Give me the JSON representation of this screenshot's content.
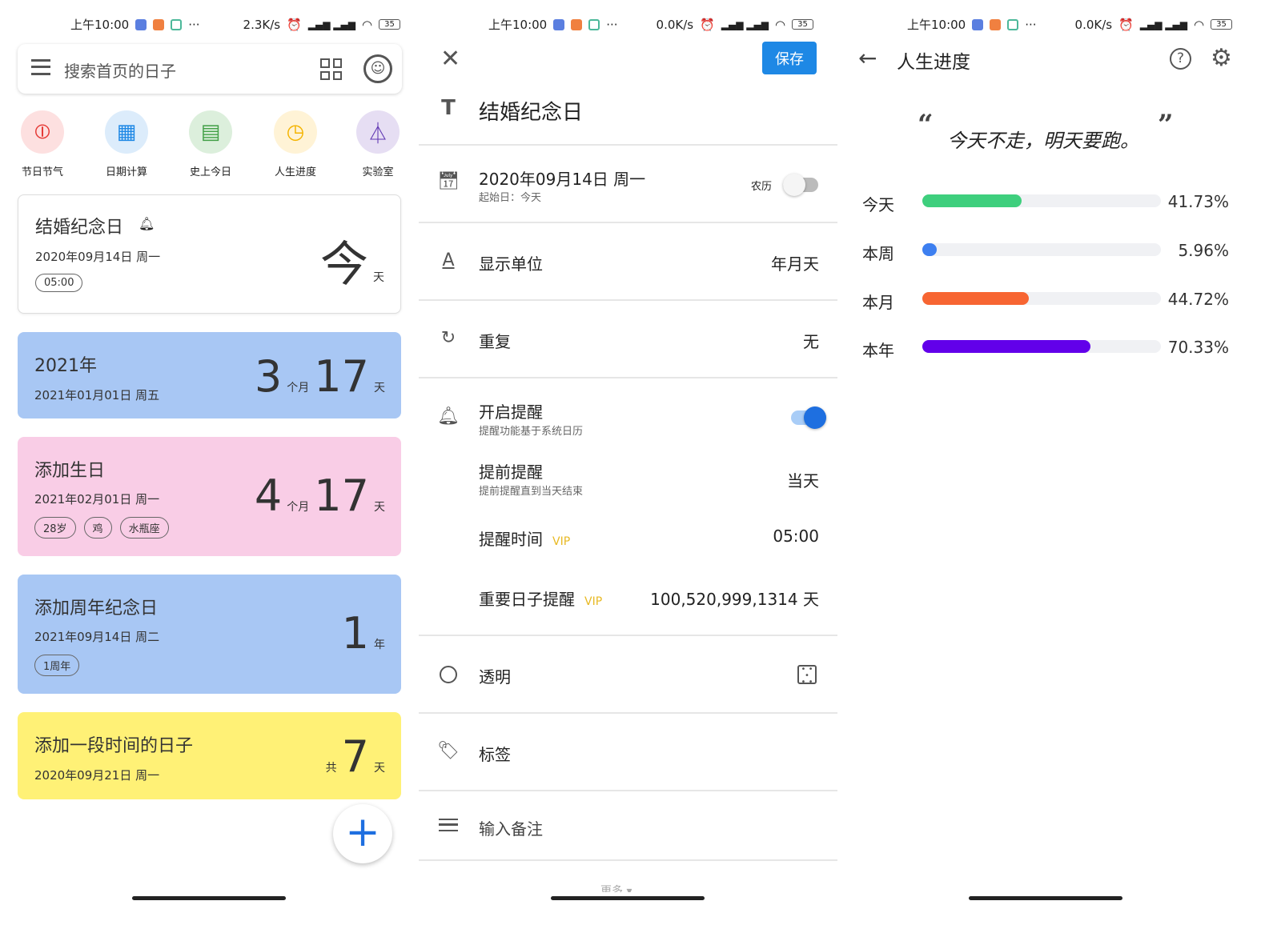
{
  "status_bars": [
    {
      "time": "上午10:00",
      "net": "2.3K/s",
      "battery": "35"
    },
    {
      "time": "上午10:00",
      "net": "0.0K/s",
      "battery": "35"
    },
    {
      "time": "上午10:00",
      "net": "0.0K/s",
      "battery": "35"
    }
  ],
  "home": {
    "search_placeholder": "搜索首页的日子",
    "shortcuts": [
      {
        "label": "节日节气",
        "icon": "lantern-icon",
        "bg": "#fde0e0",
        "color": "#e53935"
      },
      {
        "label": "日期计算",
        "icon": "calculator-icon",
        "bg": "#dcecfb",
        "color": "#1e88e5"
      },
      {
        "label": "史上今日",
        "icon": "document-icon",
        "bg": "#dcefdc",
        "color": "#43a047"
      },
      {
        "label": "人生进度",
        "icon": "clock-icon",
        "bg": "#fff3d6",
        "color": "#f4b400"
      },
      {
        "label": "实验室",
        "icon": "flask-icon",
        "bg": "#e6def3",
        "color": "#5e35b1"
      }
    ],
    "cards": [
      {
        "title": "结婚纪念日",
        "date": "2020年09月14日 周一",
        "chips": [
          "05:00"
        ],
        "big": "今",
        "unit": "天"
      },
      {
        "title": "2021年",
        "date": "2021年01月01日 周五",
        "n1": "3",
        "u1": "个月",
        "n2": "17",
        "u2": "天",
        "bg": "#a8c7f4"
      },
      {
        "title": "添加生日",
        "date": "2021年02月01日 周一",
        "chips": [
          "28岁",
          "鸡",
          "水瓶座"
        ],
        "n1": "4",
        "u1": "个月",
        "n2": "17",
        "u2": "天",
        "bg": "#f9cde6"
      },
      {
        "title": "添加周年纪念日",
        "date": "2021年09月14日 周二",
        "chips": [
          "1周年"
        ],
        "n1": "1",
        "u1": "年",
        "bg": "#a8c7f4"
      },
      {
        "title": "添加一段时间的日子",
        "date": "2020年09月21日 周一",
        "pre": "共",
        "n1": "7",
        "u1": "天",
        "bg": "#fff176"
      }
    ],
    "fab": "+"
  },
  "editor": {
    "save": "保存",
    "title": "结婚纪念日",
    "date": "2020年09月14日 周一",
    "date_sub": "起始日：今天",
    "lunar": "农历",
    "lunar_on": false,
    "unit_label": "显示单位",
    "unit_value": "年月天",
    "repeat_label": "重复",
    "repeat_value": "无",
    "remind_label": "开启提醒",
    "remind_sub": "提醒功能基于系统日历",
    "remind_on": true,
    "advance_label": "提前提醒",
    "advance_sub": "提前提醒直到当天结束",
    "advance_value": "当天",
    "time_label": "提醒时间",
    "vip": "VIP",
    "time_value": "05:00",
    "important_label": "重要日子提醒",
    "important_value": "100,520,999,1314 天",
    "transparent_label": "透明",
    "tag_label": "标签",
    "note_placeholder": "输入备注",
    "more": "更多"
  },
  "progress": {
    "title": "人生进度",
    "quote": "今天不走，明天要跑。",
    "rows": [
      {
        "label": "今天",
        "value": 41.73,
        "text": "41.73%",
        "color": "#3ecf7d"
      },
      {
        "label": "本周",
        "value": 5.96,
        "text": "5.96%",
        "color": "#3d7ff0"
      },
      {
        "label": "本月",
        "value": 44.72,
        "text": "44.72%",
        "color": "#f76532"
      },
      {
        "label": "本年",
        "value": 70.33,
        "text": "70.33%",
        "color": "#6200ea"
      }
    ]
  }
}
